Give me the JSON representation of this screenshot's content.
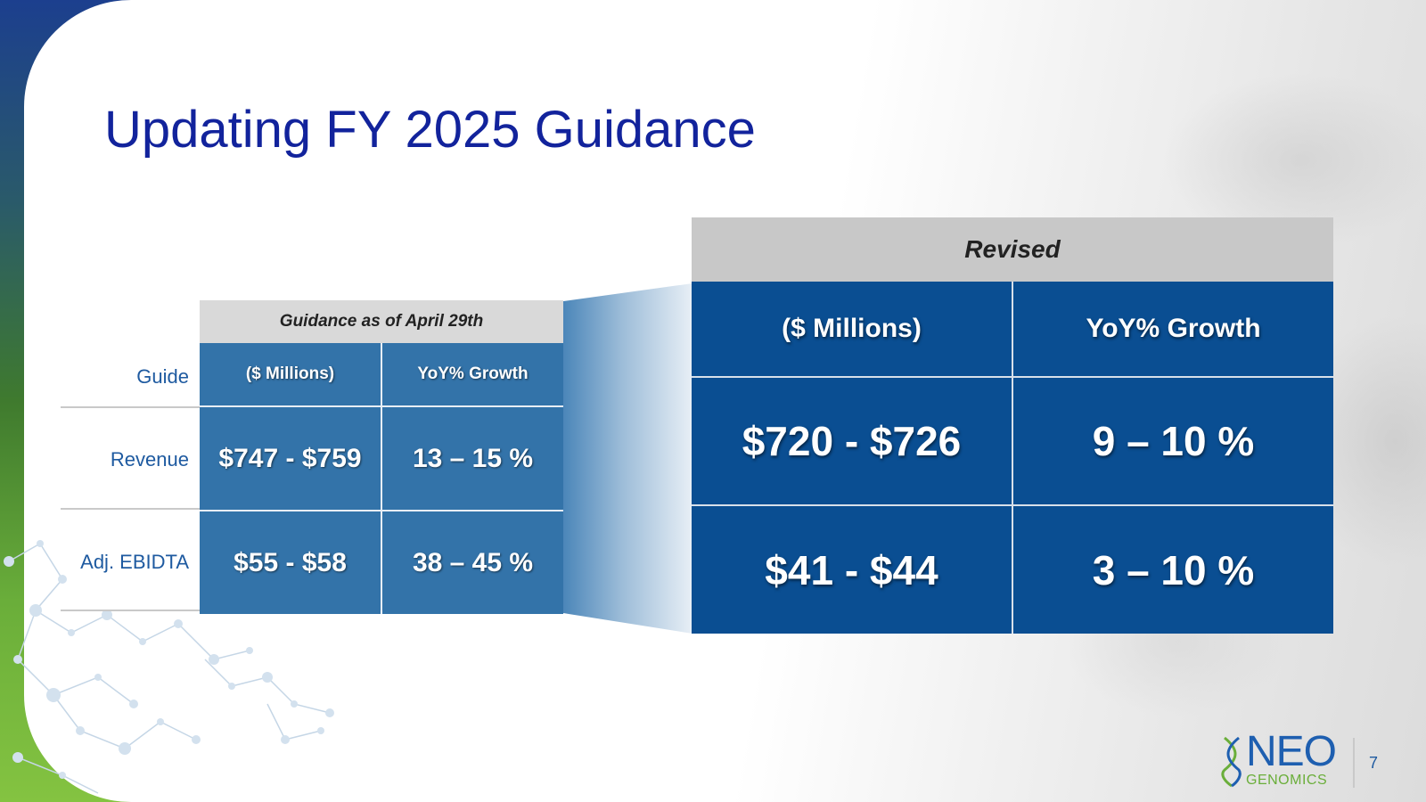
{
  "slide": {
    "title": "Updating FY 2025 Guidance",
    "page_number": "7"
  },
  "previous_guidance": {
    "header": "Guidance as of April 29th",
    "row_labels": [
      "Guide",
      "Revenue",
      "Adj. EBIDTA"
    ],
    "columns": [
      "($ Millions)",
      "YoY% Growth"
    ],
    "rows": [
      [
        "$747 - $759",
        "13 – 15 %"
      ],
      [
        "$55 - $58",
        "38 – 45 %"
      ]
    ]
  },
  "revised_guidance": {
    "header": "Revised",
    "columns": [
      "($ Millions)",
      "YoY% Growth"
    ],
    "rows": [
      [
        "$720 - $726",
        "9 – 10 %"
      ],
      [
        "$41 - $44",
        "3 – 10 %"
      ]
    ]
  },
  "logo": {
    "brand": "NEO",
    "sub": "GENOMICS"
  },
  "colors": {
    "title": "#12239c",
    "small_cell": "#3373a9",
    "big_cell": "#0a4e92",
    "label": "#1e5aa0"
  }
}
